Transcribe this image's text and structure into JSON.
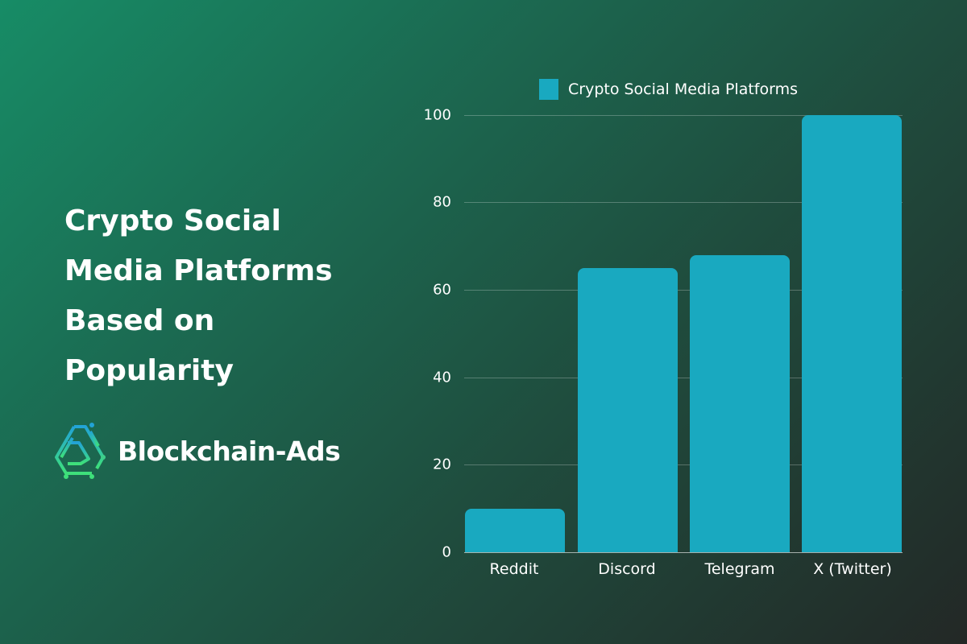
{
  "title": "Crypto Social Media Platforms Based on Popularity",
  "title_lines": [
    "Crypto Social",
    "Media Platforms",
    "Based on",
    "Popularity"
  ],
  "logo": {
    "text": "Blockchain-Ads",
    "icon": "blockchain-ads-logo-icon"
  },
  "colors": {
    "bar": "#19a9c0",
    "background_start": "#178c66",
    "background_end": "#232826"
  },
  "chart_data": {
    "type": "bar",
    "title": "",
    "categories": [
      "Reddit",
      "Discord",
      "Telegram",
      "X (Twitter)"
    ],
    "series": [
      {
        "name": "Crypto Social Media Platforms",
        "values": [
          10,
          65,
          68,
          100
        ]
      }
    ],
    "xlabel": "",
    "ylabel": "",
    "ylim": [
      0,
      100
    ],
    "yticks": [
      0,
      20,
      40,
      60,
      80,
      100
    ],
    "grid": true,
    "legend_position": "top"
  }
}
